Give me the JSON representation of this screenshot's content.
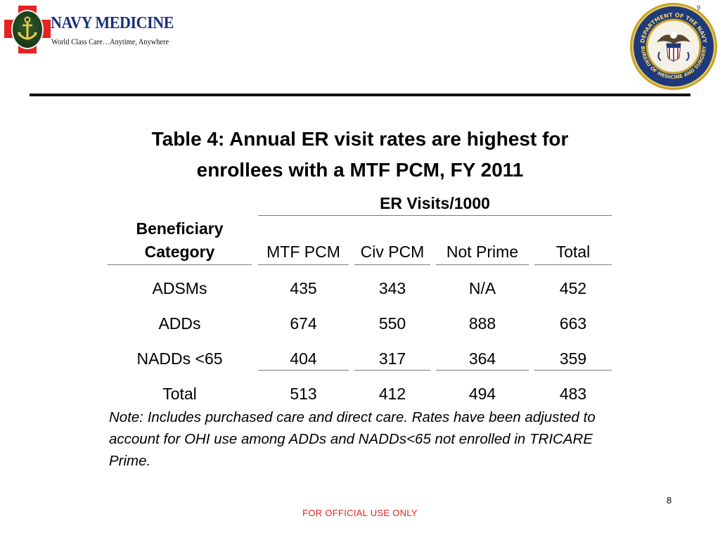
{
  "header": {
    "logo_title": "NAVY MEDICINE",
    "logo_tagline": "World Class Care…Anytime, Anywhere",
    "seal_top_text": "DEPARTMENT OF THE NAVY",
    "seal_bottom_text": "BUREAU OF MEDICINE AND SURGERY",
    "corner_number": "9"
  },
  "title": {
    "line1": "Table 4: Annual ER visit rates are highest for",
    "line2": "enrollees with a MTF PCM, FY 2011"
  },
  "table": {
    "group_header": "ER Visits/1000",
    "category_header_line1": "Beneficiary",
    "category_header_line2": "Category",
    "columns": [
      "MTF PCM",
      "Civ PCM",
      "Not Prime",
      "Total"
    ],
    "rows": [
      {
        "category": "ADSMs",
        "values": [
          "435",
          "343",
          "N/A",
          "452"
        ]
      },
      {
        "category": "ADDs",
        "values": [
          "674",
          "550",
          "888",
          "663"
        ]
      },
      {
        "category": "NADDs <65",
        "values": [
          "404",
          "317",
          "364",
          "359"
        ]
      },
      {
        "category": "Total",
        "values": [
          "513",
          "412",
          "494",
          "483"
        ]
      }
    ]
  },
  "note": "Note: Includes purchased care and direct care. Rates have been adjusted to account for OHI use among ADDs and NADDs<65 not enrolled in TRICARE Prime.",
  "page_number": "8",
  "footer": "FOR OFFICIAL USE ONLY",
  "colors": {
    "brand_red": "#e52421",
    "brand_navy": "#1a2f7a",
    "seal_gold": "#c9a227"
  }
}
